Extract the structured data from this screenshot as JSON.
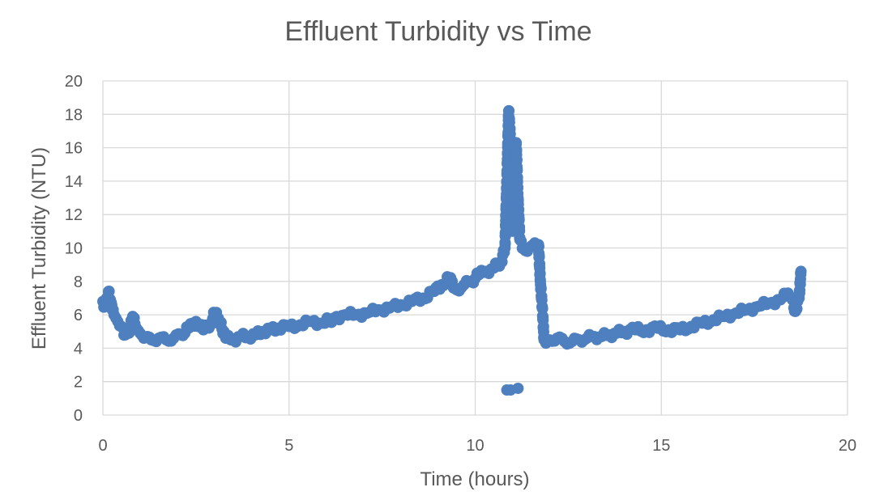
{
  "chart_data": {
    "type": "scatter",
    "title": "Effluent Turbidity vs Time",
    "xlabel": "Time (hours)",
    "ylabel": "Effluent Turbidity (NTU)",
    "xlim": [
      0,
      20
    ],
    "ylim": [
      0,
      20
    ],
    "xticks": [
      "0",
      "5",
      "10",
      "15",
      "20"
    ],
    "yticks": [
      "0",
      "2",
      "4",
      "6",
      "8",
      "10",
      "12",
      "14",
      "16",
      "18",
      "20"
    ],
    "grid": true,
    "legend": "none",
    "marker_color": "#4e7fbf",
    "series": [
      {
        "x": [
          0.0,
          0.05,
          0.1,
          0.15,
          0.2,
          0.25,
          0.3,
          0.35,
          0.4,
          0.5,
          0.6,
          0.7,
          0.8,
          0.9,
          1.0,
          1.1,
          1.2,
          1.3,
          1.5,
          1.7,
          1.9,
          2.1,
          2.3,
          2.5,
          2.7,
          2.9,
          3.0,
          3.1,
          3.3,
          3.5,
          3.7,
          3.9,
          4.1,
          4.3,
          4.5,
          4.7,
          5.0,
          5.3,
          5.6,
          5.9,
          6.2,
          6.5,
          6.8,
          7.1,
          7.4,
          7.7,
          8.0,
          8.3,
          8.6,
          8.9,
          9.1,
          9.3,
          9.5,
          9.7,
          9.9,
          10.1,
          10.3,
          10.5,
          10.7,
          10.8,
          10.85,
          10.9,
          10.95,
          11.0,
          11.05,
          11.1,
          11.15,
          11.2,
          11.3,
          11.4,
          11.5,
          11.6,
          11.7,
          11.75,
          11.8,
          11.85,
          11.9,
          12.0,
          12.2,
          12.4,
          12.6,
          12.8,
          13.0,
          13.2,
          13.4,
          13.6,
          13.8,
          14.0,
          14.3,
          14.6,
          14.9,
          15.2,
          15.5,
          15.8,
          16.1,
          16.4,
          16.7,
          17.0,
          17.3,
          17.6,
          17.9,
          18.2,
          18.4,
          18.5,
          18.6,
          18.7,
          18.75
        ],
        "y": [
          6.8,
          6.5,
          7.0,
          7.4,
          6.9,
          6.3,
          6.0,
          5.8,
          5.6,
          5.3,
          4.8,
          4.9,
          5.9,
          5.2,
          4.9,
          4.6,
          4.7,
          4.5,
          4.6,
          4.5,
          4.6,
          4.8,
          5.2,
          5.6,
          5.1,
          5.5,
          6.1,
          5.8,
          4.6,
          4.5,
          4.7,
          4.7,
          4.8,
          5.0,
          5.1,
          5.2,
          5.3,
          5.4,
          5.6,
          5.5,
          5.8,
          6.0,
          6.0,
          6.1,
          6.3,
          6.4,
          6.6,
          6.8,
          7.0,
          7.4,
          7.8,
          8.2,
          7.5,
          7.8,
          8.0,
          8.4,
          8.6,
          8.8,
          9.2,
          10.0,
          14.0,
          18.2,
          16.5,
          11.0,
          15.0,
          16.3,
          13.0,
          10.5,
          10.0,
          9.8,
          10.1,
          10.3,
          10.2,
          8.0,
          6.5,
          4.5,
          4.3,
          4.5,
          4.6,
          4.4,
          4.4,
          4.5,
          4.6,
          4.7,
          4.7,
          4.8,
          4.9,
          5.0,
          5.1,
          5.1,
          5.2,
          5.1,
          5.1,
          5.3,
          5.5,
          5.7,
          5.9,
          6.1,
          6.3,
          6.5,
          6.7,
          6.9,
          7.3,
          7.0,
          6.2,
          7.0,
          8.6
        ],
        "outliers": {
          "x": [
            10.85,
            10.95,
            11.15
          ],
          "y": [
            1.5,
            1.5,
            1.6
          ]
        }
      }
    ]
  }
}
